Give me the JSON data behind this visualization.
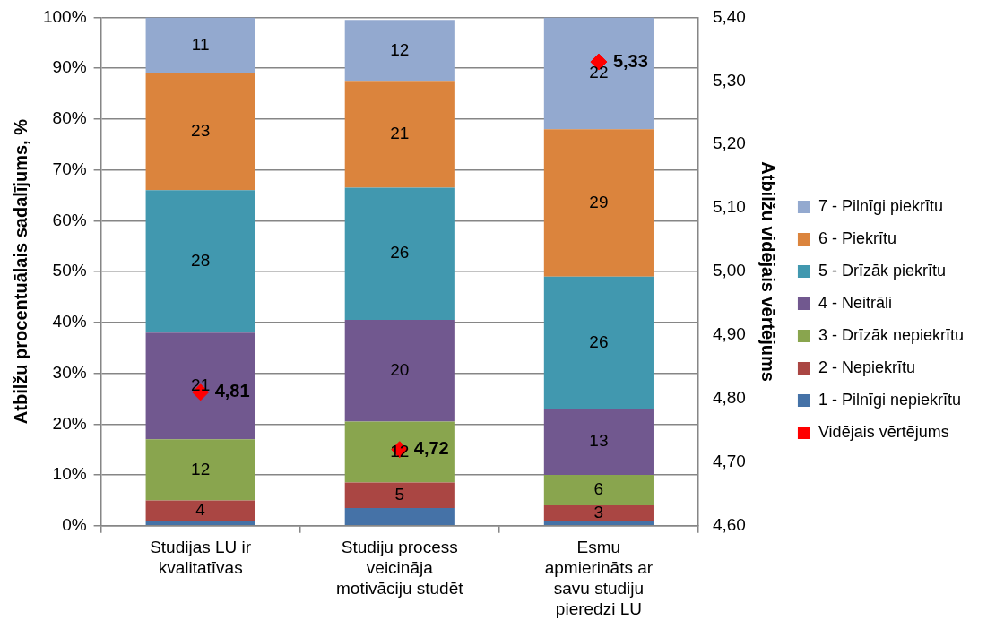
{
  "chart_data": {
    "type": "bar",
    "stacked": true,
    "categories": [
      "Studijas LU ir kvalitatīvas",
      "Studiju process veicināja motivāciju studēt",
      "Esmu apmierināts ar savu studiju pieredzi LU"
    ],
    "ylabel": "Atbilžu procentuālais sadalījums, %",
    "y2label": "Atbilžu vidējais vērtējums",
    "ylim": [
      0,
      100
    ],
    "yticks": [
      {
        "value": 0,
        "label": "0%"
      },
      {
        "value": 10,
        "label": "10%"
      },
      {
        "value": 20,
        "label": "20%"
      },
      {
        "value": 30,
        "label": "30%"
      },
      {
        "value": 40,
        "label": "40%"
      },
      {
        "value": 50,
        "label": "50%"
      },
      {
        "value": 60,
        "label": "60%"
      },
      {
        "value": 70,
        "label": "70%"
      },
      {
        "value": 80,
        "label": "80%"
      },
      {
        "value": 90,
        "label": "90%"
      },
      {
        "value": 100,
        "label": "100%"
      }
    ],
    "y2lim": [
      4.6,
      5.4
    ],
    "y2ticks": [
      {
        "value": 4.6,
        "label": "4,60"
      },
      {
        "value": 4.7,
        "label": "4,70"
      },
      {
        "value": 4.8,
        "label": "4,80"
      },
      {
        "value": 4.9,
        "label": "4,90"
      },
      {
        "value": 5.0,
        "label": "5,00"
      },
      {
        "value": 5.1,
        "label": "5,10"
      },
      {
        "value": 5.2,
        "label": "5,20"
      },
      {
        "value": 5.3,
        "label": "5,30"
      },
      {
        "value": 5.4,
        "label": "5,40"
      }
    ],
    "grid": "y",
    "legend": "right",
    "series": [
      {
        "name": "1 - Pilnīgi nepiekrītu",
        "color": "#4572a7",
        "values": [
          1,
          3.5,
          1
        ],
        "value_labels": [
          null,
          null,
          null
        ]
      },
      {
        "name": "2 - Nepiekrītu",
        "color": "#aa4643",
        "values": [
          4,
          5,
          3
        ],
        "value_labels": [
          "4",
          "5",
          "3"
        ]
      },
      {
        "name": "3 - Drīzāk nepiekrītu",
        "color": "#89a54e",
        "values": [
          12,
          12,
          6
        ],
        "value_labels": [
          "12",
          "12",
          "6"
        ]
      },
      {
        "name": "4 - Neitrāli",
        "color": "#71588f",
        "values": [
          21,
          20,
          13
        ],
        "value_labels": [
          "21",
          "20",
          "13"
        ]
      },
      {
        "name": "5 - Drīzāk piekrītu",
        "color": "#4198af",
        "values": [
          28,
          26,
          26
        ],
        "value_labels": [
          "28",
          "26",
          "26"
        ]
      },
      {
        "name": "6 - Piekrītu",
        "color": "#db843d",
        "values": [
          23,
          21,
          29
        ],
        "value_labels": [
          "23",
          "21",
          "29"
        ]
      },
      {
        "name": "7 - Pilnīgi piekrītu",
        "color": "#93a9cf",
        "values": [
          11,
          12,
          22
        ],
        "value_labels": [
          "11",
          "12",
          "22"
        ]
      },
      {
        "name": "Vidējais vērtējums",
        "type": "scatter",
        "axis": "y2",
        "marker": "diamond",
        "color": "#ff0000",
        "x": [
          "Studijas LU ir kvalitatīvas",
          "Studiju process veicināja motivāciju studēt",
          "Esmu apmierināts ar savu studiju pieredzi LU"
        ],
        "values": [
          4.81,
          4.72,
          5.33
        ],
        "value_labels": [
          "4,81",
          "4,72",
          "5,33"
        ]
      }
    ]
  }
}
